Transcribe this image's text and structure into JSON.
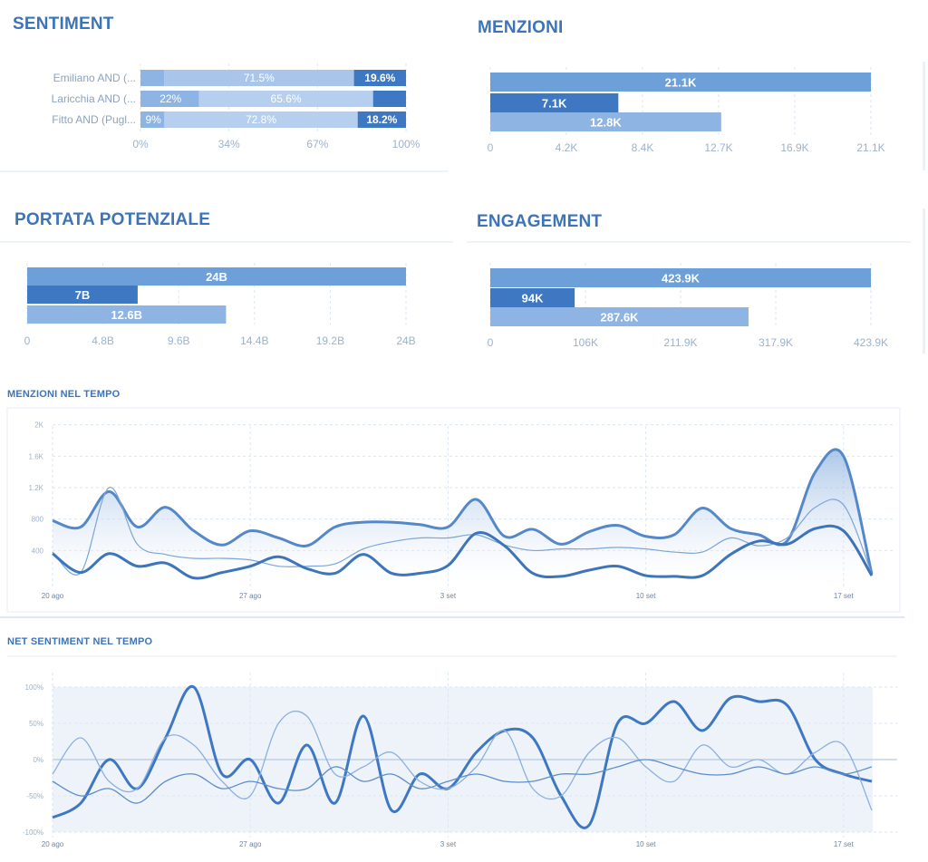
{
  "colors": {
    "title": "#3d74b8",
    "bar_main": "#6d9fd8",
    "bar_dark": "#3f78c2",
    "bar_light": "#8eb4e3",
    "bar_pale": "#b6cfee",
    "bar_white": "#ffffff",
    "tick": "#9cb2cc",
    "grid": "#dde6f0"
  },
  "sentiment": {
    "title": "SENTIMENT",
    "chart_data": {
      "type": "bar",
      "stacked": true,
      "orientation": "horizontal",
      "categories": [
        "Emiliano AND (...",
        "Laricchia AND (...",
        "Fitto AND (Pugl..."
      ],
      "series": [
        {
          "values": [
            8.9,
            22,
            9
          ]
        },
        {
          "values": [
            71.5,
            65.6,
            72.8
          ]
        },
        {
          "values": [
            19.6,
            12.4,
            18.2
          ]
        }
      ],
      "segment_labels": [
        [
          "",
          "71.5%",
          "19.6%"
        ],
        [
          "22%",
          "65.6%",
          ""
        ],
        [
          "9%",
          "72.8%",
          "18.2%"
        ]
      ],
      "xticks": [
        "0%",
        "34%",
        "67%",
        "100%"
      ],
      "xlim": [
        0,
        100
      ]
    }
  },
  "menzioni": {
    "title": "MENZIONI",
    "chart_data": {
      "type": "bar",
      "orientation": "horizontal",
      "values": [
        21.1,
        7.1,
        12.8
      ],
      "value_labels": [
        "21.1K",
        "7.1K",
        "12.8K"
      ],
      "xticks": [
        "0",
        "4.2K",
        "8.4K",
        "12.7K",
        "16.9K",
        "21.1K"
      ],
      "xlim": [
        0,
        21.1
      ]
    }
  },
  "portata": {
    "title": "PORTATA POTENZIALE",
    "chart_data": {
      "type": "bar",
      "orientation": "horizontal",
      "values": [
        24,
        7,
        12.6
      ],
      "value_labels": [
        "24B",
        "7B",
        "12.6B"
      ],
      "xticks": [
        "0",
        "4.8B",
        "9.6B",
        "14.4B",
        "19.2B",
        "24B"
      ],
      "xlim": [
        0,
        24
      ]
    }
  },
  "engagement": {
    "title": "ENGAGEMENT",
    "chart_data": {
      "type": "bar",
      "orientation": "horizontal",
      "values": [
        423.9,
        94,
        287.6
      ],
      "value_labels": [
        "423.9K",
        "94K",
        "287.6K"
      ],
      "xticks": [
        "0",
        "106K",
        "211.9K",
        "317.9K",
        "423.9K"
      ],
      "xlim": [
        0,
        423.9
      ]
    }
  },
  "menzioni_tempo": {
    "title": "MENZIONI NEL TEMPO",
    "chart_data": {
      "type": "area",
      "x": [
        "20 ago",
        "21 ago",
        "22 ago",
        "23 ago",
        "24 ago",
        "25 ago",
        "26 ago",
        "27 ago",
        "28 ago",
        "29 ago",
        "30 ago",
        "31 ago",
        "1 set",
        "2 set",
        "3 set",
        "4 set",
        "5 set",
        "6 set",
        "7 set",
        "8 set",
        "9 set",
        "10 set",
        "11 set",
        "12 set",
        "13 set",
        "14 set",
        "15 set",
        "16 set",
        "17 set",
        "18 set"
      ],
      "xticks": [
        "20 ago",
        "27 ago",
        "3 set",
        "10 set",
        "17 set"
      ],
      "yticks": [
        "400",
        "800",
        "1.2K",
        "1.6K",
        "2K"
      ],
      "ylim": [
        0,
        2100
      ],
      "series": [
        {
          "values": [
            780,
            700,
            1150,
            700,
            950,
            650,
            470,
            650,
            560,
            460,
            700,
            760,
            760,
            730,
            700,
            1050,
            580,
            670,
            480,
            640,
            720,
            580,
            600,
            940,
            680,
            600,
            520,
            1400,
            1600,
            100
          ]
        },
        {
          "values": [
            380,
            120,
            1200,
            480,
            350,
            300,
            300,
            280,
            200,
            200,
            230,
            420,
            510,
            560,
            560,
            600,
            470,
            400,
            420,
            420,
            440,
            420,
            380,
            380,
            560,
            460,
            560,
            950,
            980,
            100
          ]
        },
        {
          "values": [
            360,
            120,
            360,
            200,
            240,
            50,
            120,
            200,
            320,
            170,
            110,
            350,
            110,
            110,
            210,
            620,
            460,
            110,
            70,
            150,
            200,
            80,
            70,
            80,
            350,
            520,
            480,
            680,
            650,
            80
          ]
        }
      ]
    }
  },
  "sentiment_tempo": {
    "title": "NET SENTIMENT NEL TEMPO",
    "chart_data": {
      "type": "line",
      "x": [
        "20 ago",
        "21 ago",
        "22 ago",
        "23 ago",
        "24 ago",
        "25 ago",
        "26 ago",
        "27 ago",
        "28 ago",
        "29 ago",
        "30 ago",
        "31 ago",
        "1 set",
        "2 set",
        "3 set",
        "4 set",
        "5 set",
        "6 set",
        "7 set",
        "8 set",
        "9 set",
        "10 set",
        "11 set",
        "12 set",
        "13 set",
        "14 set",
        "15 set",
        "16 set",
        "17 set",
        "18 set"
      ],
      "xticks": [
        "20 ago",
        "27 ago",
        "3 set",
        "10 set",
        "17 set"
      ],
      "yticks": [
        "100%",
        "50%",
        "0%",
        "-50%",
        "-100%"
      ],
      "ylim": [
        -100,
        100
      ],
      "series": [
        {
          "values": [
            -80,
            -60,
            0,
            -40,
            30,
            100,
            -20,
            0,
            -60,
            20,
            -60,
            60,
            -70,
            -20,
            -40,
            10,
            40,
            30,
            -50,
            -90,
            50,
            50,
            80,
            40,
            85,
            80,
            75,
            0,
            -20,
            -30
          ]
        },
        {
          "values": [
            -20,
            30,
            -30,
            -40,
            30,
            20,
            -30,
            -50,
            50,
            60,
            -20,
            -10,
            10,
            -30,
            -40,
            -10,
            40,
            -40,
            -50,
            10,
            30,
            -10,
            -30,
            20,
            -10,
            0,
            -20,
            10,
            20,
            -70
          ]
        },
        {
          "values": [
            -30,
            -50,
            -40,
            -60,
            -30,
            -20,
            -40,
            -30,
            -40,
            -40,
            -10,
            -30,
            -20,
            -40,
            -30,
            -20,
            -30,
            -30,
            -20,
            -20,
            -10,
            0,
            -10,
            -20,
            -20,
            -10,
            -20,
            -10,
            -20,
            -10
          ]
        }
      ]
    }
  }
}
